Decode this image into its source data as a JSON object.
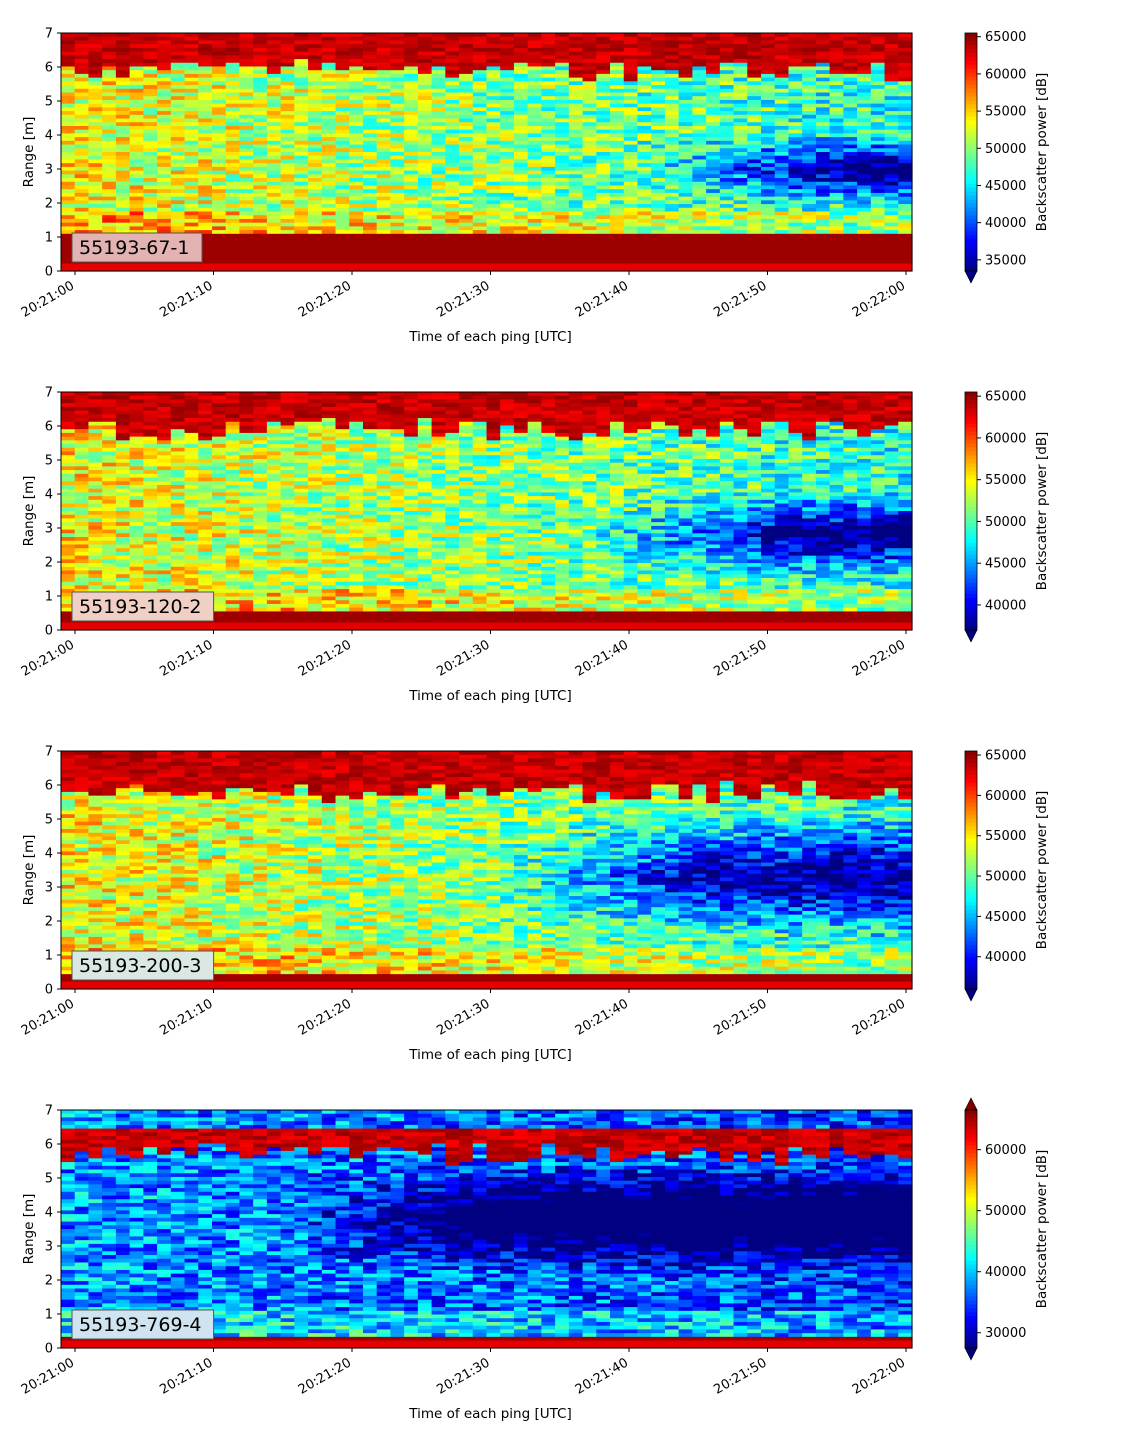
{
  "chart_data": [
    {
      "type": "heatmap",
      "panel_label": "55193-67-1",
      "xlabel": "Time of each ping [UTC]",
      "ylabel": "Range [m]",
      "colorbar_label": "Backscatter power [dB]",
      "xtick_labels": [
        "20:21:00",
        "20:21:10",
        "20:21:20",
        "20:21:30",
        "20:21:40",
        "20:21:50",
        "20:22:00"
      ],
      "yticks": [
        0,
        1,
        2,
        3,
        4,
        5,
        6,
        7
      ],
      "ylim": [
        0,
        7
      ],
      "colorbar_ticks": [
        35000,
        40000,
        45000,
        50000,
        55000,
        60000,
        65000
      ],
      "colorbar_range": [
        33500,
        65500
      ],
      "colorbar_extend": "min",
      "colormap": "jet",
      "label_box_color": "#e3b2b2",
      "profile": {
        "bottom_band_top_m": 1.1,
        "surface_band_m": [
          5.9,
          7.0
        ],
        "dark_region": {
          "start_fraction": 0.66,
          "center_m": 3.0,
          "halfwidth_m": 1.1
        }
      }
    },
    {
      "type": "heatmap",
      "panel_label": "55193-120-2",
      "xlabel": "Time of each ping [UTC]",
      "ylabel": "Range [m]",
      "colorbar_label": "Backscatter power [dB]",
      "xtick_labels": [
        "20:21:00",
        "20:21:10",
        "20:21:20",
        "20:21:30",
        "20:21:40",
        "20:21:50",
        "20:22:00"
      ],
      "yticks": [
        0,
        1,
        2,
        3,
        4,
        5,
        6,
        7
      ],
      "ylim": [
        0,
        7
      ],
      "colorbar_ticks": [
        40000,
        45000,
        50000,
        55000,
        60000,
        65000
      ],
      "colorbar_range": [
        37000,
        65500
      ],
      "colorbar_extend": "min",
      "colormap": "jet",
      "label_box_color": "#f0cfc4",
      "profile": {
        "bottom_band_top_m": 0.5,
        "surface_band_m": [
          5.9,
          7.0
        ],
        "dark_region": {
          "start_fraction": 0.6,
          "center_m": 2.8,
          "halfwidth_m": 1.3
        }
      }
    },
    {
      "type": "heatmap",
      "panel_label": "55193-200-3",
      "xlabel": "Time of each ping [UTC]",
      "ylabel": "Range [m]",
      "colorbar_label": "Backscatter power [dB]",
      "xtick_labels": [
        "20:21:00",
        "20:21:10",
        "20:21:20",
        "20:21:30",
        "20:21:40",
        "20:21:50",
        "20:22:00"
      ],
      "yticks": [
        0,
        1,
        2,
        3,
        4,
        5,
        6,
        7
      ],
      "ylim": [
        0,
        7
      ],
      "colorbar_ticks": [
        40000,
        45000,
        50000,
        55000,
        60000,
        65000
      ],
      "colorbar_range": [
        36000,
        65500
      ],
      "colorbar_extend": "min",
      "colormap": "jet",
      "label_box_color": "#d9e8e3",
      "profile": {
        "bottom_band_top_m": 0.45,
        "surface_band_m": [
          5.8,
          7.0
        ],
        "dark_region": {
          "start_fraction": 0.5,
          "center_m": 3.3,
          "halfwidth_m": 1.8
        }
      }
    },
    {
      "type": "heatmap",
      "panel_label": "55193-769-4",
      "xlabel": "Time of each ping [UTC]",
      "ylabel": "Range [m]",
      "colorbar_label": "Backscatter power [dB]",
      "xtick_labels": [
        "20:21:00",
        "20:21:10",
        "20:21:20",
        "20:21:30",
        "20:21:40",
        "20:21:50",
        "20:22:00"
      ],
      "yticks": [
        0,
        1,
        2,
        3,
        4,
        5,
        6,
        7
      ],
      "ylim": [
        0,
        7
      ],
      "colorbar_ticks": [
        30000,
        40000,
        50000,
        60000
      ],
      "colorbar_range": [
        27500,
        66500
      ],
      "colorbar_extend": "both",
      "colormap": "jet",
      "label_box_color": "#cfe3f0",
      "profile": {
        "bottom_band_top_m": 0.35,
        "surface_band_m": [
          5.7,
          6.4
        ],
        "dark_region": {
          "start_fraction": 0.25,
          "center_m": 3.8,
          "halfwidth_m": 1.6
        }
      }
    }
  ]
}
